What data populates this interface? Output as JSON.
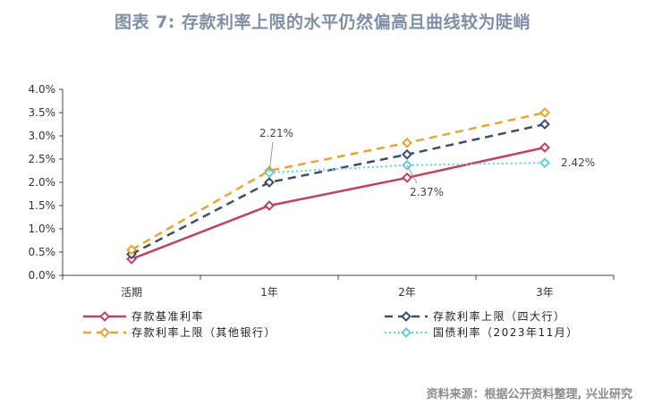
{
  "title": "图表 7:  存款利率上限的水平仍然偏高且曲线较为陡峭",
  "source": "资料来源：根据公开资料整理, 兴业研究",
  "chart_data": {
    "type": "line",
    "categories": [
      "活期",
      "1年",
      "2年",
      "3年"
    ],
    "ylim": [
      0,
      4.0
    ],
    "yticks": [
      "0.0%",
      "0.5%",
      "1.0%",
      "1.5%",
      "2.0%",
      "2.5%",
      "3.0%",
      "3.5%",
      "4.0%"
    ],
    "grid": false,
    "legend_position": "bottom",
    "series": [
      {
        "name": "存款基准利率",
        "values": [
          0.35,
          1.5,
          2.1,
          2.75
        ],
        "color": "#c0425c",
        "dash": "solid",
        "marker": "diamond"
      },
      {
        "name": "存款利率上限（四大行）",
        "values": [
          0.455,
          2.0,
          2.6,
          3.25
        ],
        "color": "#3b4e6e",
        "dash": "dashed",
        "marker": "diamond"
      },
      {
        "name": "存款利率上限（其他银行）",
        "values": [
          0.55,
          2.25,
          2.85,
          3.5
        ],
        "color": "#e8a530",
        "dash": "dashed",
        "marker": "diamond"
      },
      {
        "name": "国债利率（2023年11月）",
        "values": [
          null,
          2.21,
          2.37,
          2.42
        ],
        "color": "#5fd0dc",
        "dash": "dotted",
        "marker": "diamond"
      }
    ],
    "annotations": [
      {
        "text": "2.21%",
        "series": 3,
        "index": 1
      },
      {
        "text": "2.37%",
        "series": 3,
        "index": 2
      },
      {
        "text": "2.42%",
        "series": 3,
        "index": 3
      }
    ]
  }
}
